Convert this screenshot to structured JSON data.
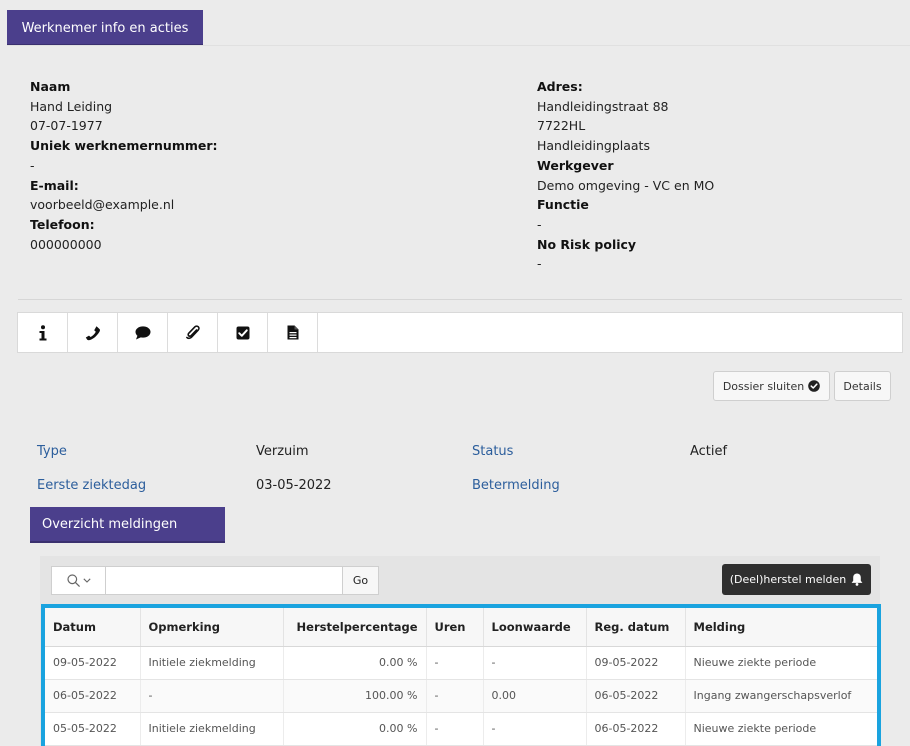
{
  "header": {
    "tab_label": "Werknemer info en acties"
  },
  "employee": {
    "name_label": "Naam",
    "name": "Hand Leiding",
    "birthdate": "07-07-1977",
    "number_label": "Uniek werknemernummer:",
    "number": "-",
    "email_label": "E-mail:",
    "email": "voorbeeld@example.nl",
    "phone_label": "Telefoon:",
    "phone": "000000000",
    "address_label": "Adres:",
    "street": "Handleidingstraat 88",
    "postcode": "7722HL",
    "city": "Handleidingplaats",
    "employer_label": "Werkgever",
    "employer": "Demo omgeving - VC en MO",
    "function_label": "Functie",
    "function": "-",
    "norisk_label": "No Risk policy",
    "norisk": "-"
  },
  "toolbar": {
    "icons": [
      "info-icon",
      "phone-icon",
      "comment-icon",
      "paperclip-icon",
      "checkbox-icon",
      "document-icon"
    ]
  },
  "actions": {
    "close_dossier": "Dossier sluiten",
    "details": "Details"
  },
  "case": {
    "type_label": "Type",
    "type_value": "Verzuim",
    "status_label": "Status",
    "status_value": "Actief",
    "first_day_label": "Eerste ziektedag",
    "first_day_value": "03-05-2022",
    "recovery_label": "Betermelding"
  },
  "notifications": {
    "tab_label": "Overzicht meldingen",
    "search_value": "",
    "go_label": "Go",
    "recovery_button": "(Deel)herstel melden",
    "columns": [
      "Datum",
      "Opmerking",
      "Herstelpercentage",
      "Uren",
      "Loonwaarde",
      "Reg. datum",
      "Melding"
    ],
    "rows": [
      [
        "09-05-2022",
        "Initiele ziekmelding",
        "0.00 %",
        "-",
        "-",
        "09-05-2022",
        "Nieuwe ziekte periode"
      ],
      [
        "06-05-2022",
        "-",
        "100.00 %",
        "-",
        "0.00",
        "06-05-2022",
        "Ingang zwangerschapsverlof"
      ],
      [
        "05-05-2022",
        "Initiele ziekmelding",
        "0.00 %",
        "-",
        "-",
        "06-05-2022",
        "Nieuwe ziekte periode"
      ]
    ]
  },
  "colors": {
    "accent": "#4b3f8c",
    "link": "#2c5e9c",
    "highlight": "#1aa3df",
    "dark_button": "#2f2f2f"
  }
}
